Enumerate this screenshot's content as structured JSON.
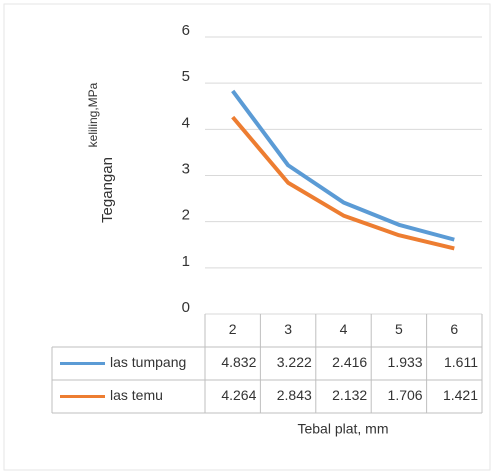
{
  "chart_data": {
    "type": "line",
    "ylabel": [
      "Tegangan",
      "keliling,MPa"
    ],
    "xlabel": "Tebal plat, mm",
    "categories": [
      "2",
      "3",
      "4",
      "5",
      "6"
    ],
    "series": [
      {
        "name": "las tumpang",
        "color": "#5b9bd5",
        "values": [
          4.832,
          3.222,
          2.416,
          1.933,
          1.611
        ]
      },
      {
        "name": "las temu",
        "color": "#ed7d31",
        "values": [
          4.264,
          2.843,
          2.132,
          1.706,
          1.421
        ]
      }
    ],
    "ylim": [
      0,
      6
    ],
    "yticks": [
      0,
      1,
      2,
      3,
      4,
      5,
      6
    ],
    "grid": true,
    "data_table": true
  }
}
